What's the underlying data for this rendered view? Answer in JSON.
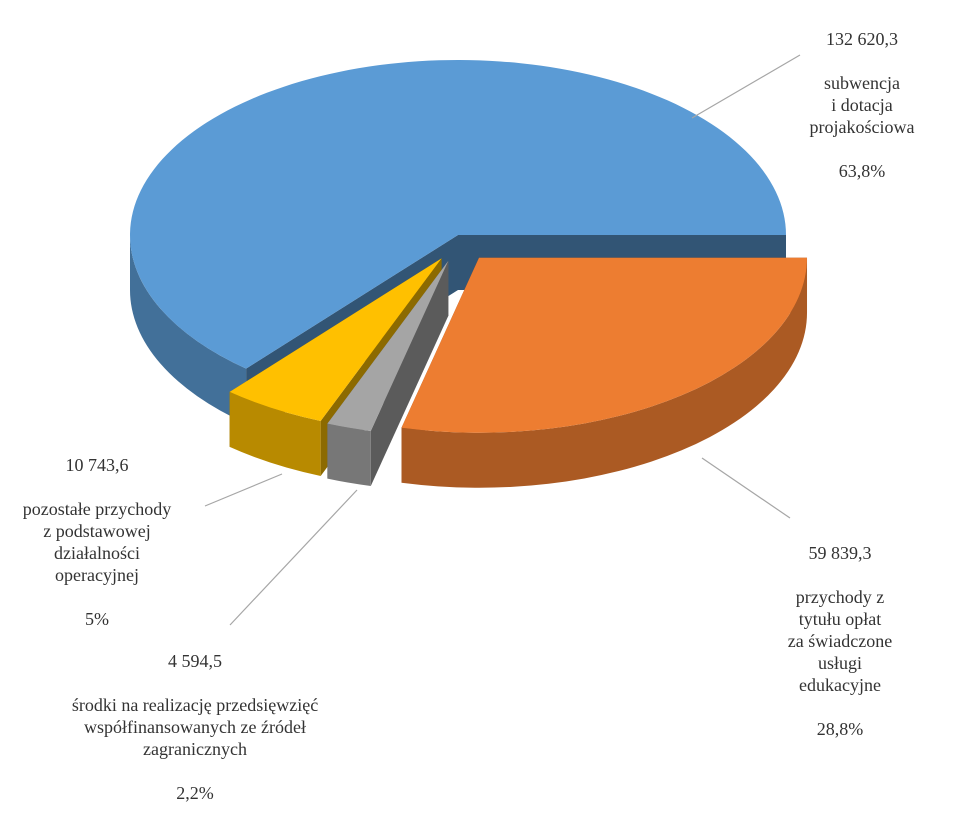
{
  "chart_data": {
    "type": "pie3d",
    "categories": [
      "subwencja\ni dotacja\nprojakościowa",
      "pozostałe przychody\nz podstawowej\ndziałalności\noperacyjnej",
      "środki na realizację przedsięwzięć\nwspółfinansowanych ze źródeł\nzagranicznych",
      "przychody z tytułu opłat\nza świadczone usługi\nedukacyjne"
    ],
    "values": [
      132620.3,
      10743.6,
      4594.5,
      59839.3
    ],
    "value_labels": [
      "132 620,3",
      "10 743,6",
      "4 594,5",
      "59 839,3"
    ],
    "percents": [
      63.8,
      5,
      2.2,
      28.8
    ],
    "percent_labels": [
      "63,8%",
      "5%",
      "2,2%",
      "28,8%"
    ],
    "colors": [
      "#5b9bd5",
      "#ffc000",
      "#a5a5a5",
      "#ed7d31"
    ]
  }
}
